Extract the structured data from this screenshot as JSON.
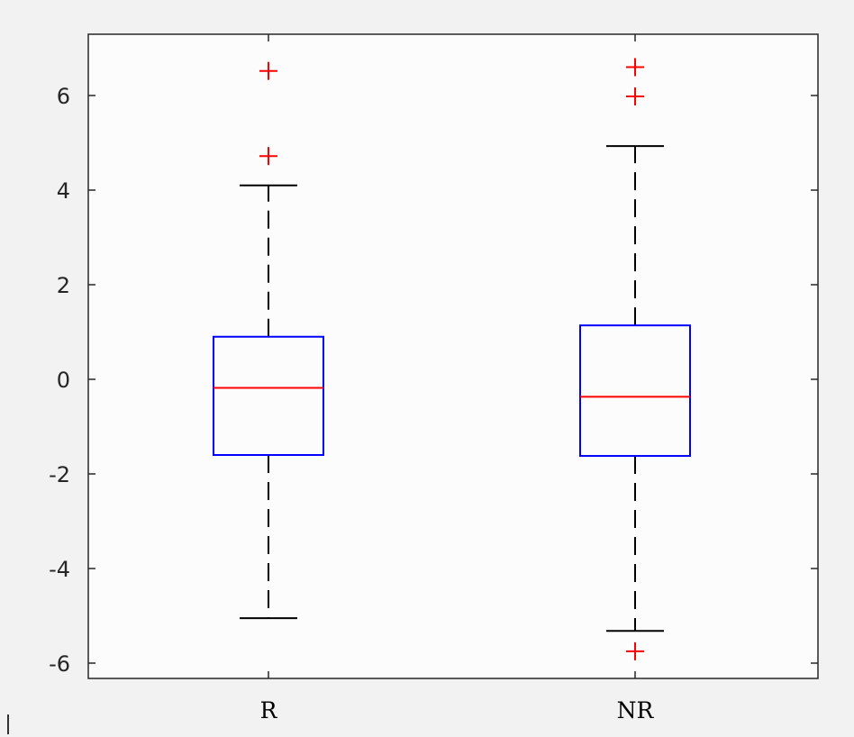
{
  "chart_data": {
    "type": "boxplot",
    "title": "",
    "xlabel": "",
    "ylabel": "",
    "ylim": [
      -6.3,
      7.3
    ],
    "yticks": [
      -6,
      -4,
      -2,
      0,
      2,
      4,
      6
    ],
    "ytick_labels": [
      "-6",
      "-4",
      "-2",
      "0",
      "2",
      "4",
      "6"
    ],
    "grid": false,
    "categories": [
      "R",
      "NR"
    ],
    "boxes": [
      {
        "category": "R",
        "whisker_low": -5.05,
        "q1": -1.6,
        "median": -0.18,
        "q3": 0.9,
        "whisker_high": 4.1,
        "outliers": [
          4.72,
          6.52
        ]
      },
      {
        "category": "NR",
        "whisker_low": -5.32,
        "q1": -1.62,
        "median": -0.37,
        "q3": 1.14,
        "whisker_high": 4.93,
        "outliers": [
          -5.75,
          5.98,
          6.6
        ]
      }
    ],
    "colors": {
      "box": "#0000ff",
      "median": "#ff0000",
      "outlier": "#ff0000",
      "whisker": "#000000",
      "plot_background": "#fcfcfc",
      "figure_background": "#f2f2f2"
    }
  }
}
